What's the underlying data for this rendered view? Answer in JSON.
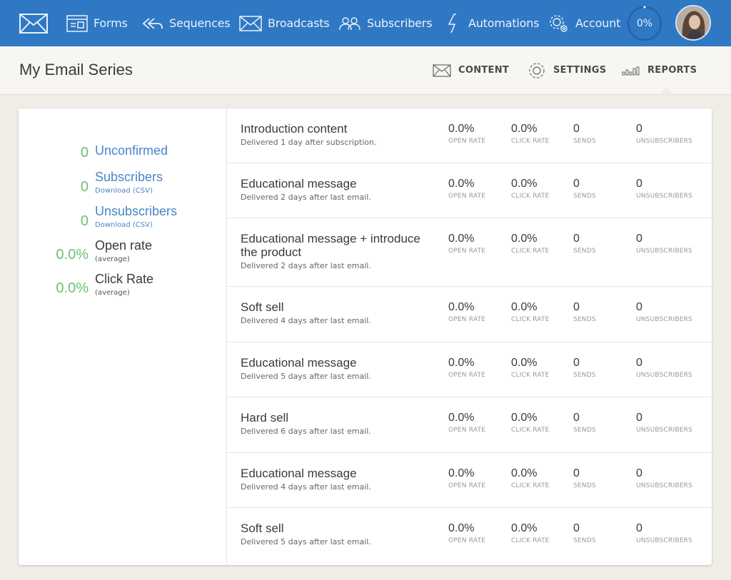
{
  "nav": {
    "items": [
      {
        "label": "Forms",
        "icon": "form-icon"
      },
      {
        "label": "Sequences",
        "icon": "sequences-icon"
      },
      {
        "label": "Broadcasts",
        "icon": "broadcast-icon"
      },
      {
        "label": "Subscribers",
        "icon": "subscribers-icon"
      },
      {
        "label": "Automations",
        "icon": "lightning-icon"
      },
      {
        "label": "Account",
        "icon": "gear-icon"
      }
    ],
    "progress": "0%",
    "progress_value": 0
  },
  "header": {
    "title": "My Email Series",
    "tabs": [
      {
        "label": "CONTENT",
        "icon": "envelope-icon"
      },
      {
        "label": "SETTINGS",
        "icon": "gear-icon"
      },
      {
        "label": "REPORTS",
        "icon": "bar-chart-icon",
        "active": true
      }
    ]
  },
  "summary": {
    "unconfirmed": {
      "value": "0",
      "label": "Unconfirmed"
    },
    "subscribers": {
      "value": "0",
      "label": "Subscribers",
      "sub": "Download (CSV)"
    },
    "unsubscribers": {
      "value": "0",
      "label": "Unsubscribers",
      "sub": "Download (CSV)"
    },
    "open_rate": {
      "value": "0.0%",
      "label": "Open rate",
      "sub": "(average)"
    },
    "click_rate": {
      "value": "0.0%",
      "label": "Click Rate",
      "sub": "(average)"
    }
  },
  "metric_labels": {
    "open": "OPEN RATE",
    "click": "CLICK RATE",
    "sends": "SENDS",
    "unsub": "UNSUBSCRIBERS"
  },
  "emails": [
    {
      "title": "Introduction content",
      "desc": "Delivered 1 day after subscription.",
      "open": "0.0%",
      "click": "0.0%",
      "sends": "0",
      "unsub": "0"
    },
    {
      "title": "Educational message",
      "desc": "Delivered 2 days after last email.",
      "open": "0.0%",
      "click": "0.0%",
      "sends": "0",
      "unsub": "0"
    },
    {
      "title": "Educational message + introduce the product",
      "desc": "Delivered 2 days after last email.",
      "open": "0.0%",
      "click": "0.0%",
      "sends": "0",
      "unsub": "0"
    },
    {
      "title": "Soft sell",
      "desc": "Delivered 4 days after last email.",
      "open": "0.0%",
      "click": "0.0%",
      "sends": "0",
      "unsub": "0"
    },
    {
      "title": "Educational message",
      "desc": "Delivered 5 days after last email.",
      "open": "0.0%",
      "click": "0.0%",
      "sends": "0",
      "unsub": "0"
    },
    {
      "title": "Hard sell",
      "desc": "Delivered 6 days after last email.",
      "open": "0.0%",
      "click": "0.0%",
      "sends": "0",
      "unsub": "0"
    },
    {
      "title": "Educational message",
      "desc": "Delivered 4 days after last email.",
      "open": "0.0%",
      "click": "0.0%",
      "sends": "0",
      "unsub": "0"
    },
    {
      "title": "Soft sell",
      "desc": "Delivered 5 days after last email.",
      "open": "0.0%",
      "click": "0.0%",
      "sends": "0",
      "unsub": "0"
    }
  ],
  "colors": {
    "nav_bg": "#2f78c4",
    "accent_link": "#4a86c8",
    "stat_green": "#6cc070"
  }
}
